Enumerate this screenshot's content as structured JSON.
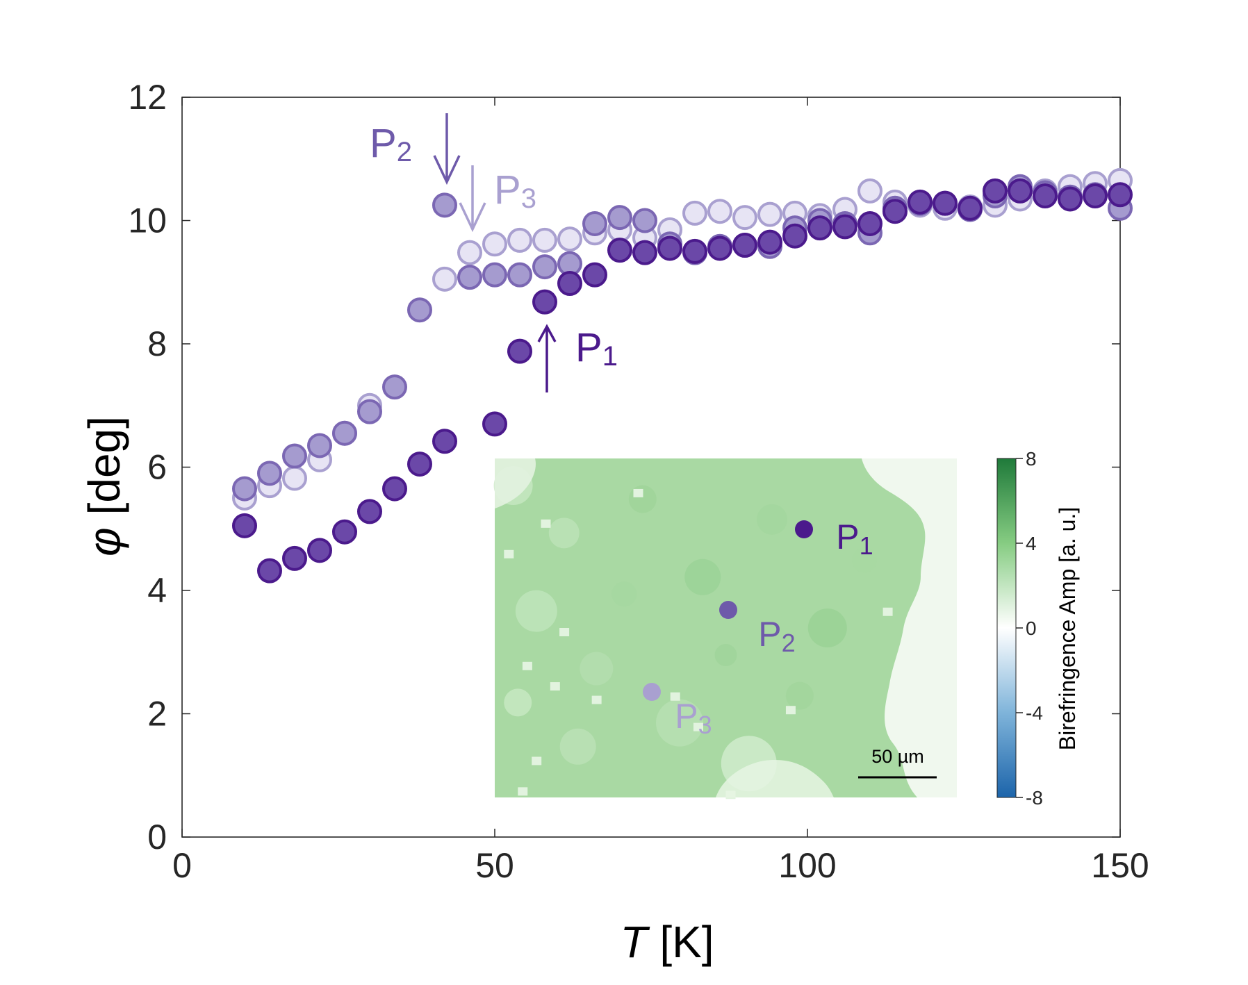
{
  "chart_data": {
    "type": "scatter",
    "xlabel": "T [K]",
    "ylabel": "φ [deg]",
    "xlim": [
      0,
      150
    ],
    "ylim": [
      0,
      12
    ],
    "xticks": [
      "0",
      "50",
      "100",
      "150"
    ],
    "yticks": [
      "0",
      "2",
      "4",
      "6",
      "8",
      "10",
      "12"
    ],
    "series": [
      {
        "name": "P1",
        "color": "#4b1a8c",
        "x": [
          10,
          14,
          18,
          22,
          26,
          30,
          34,
          38,
          42,
          50,
          54,
          58,
          62,
          66,
          70,
          74,
          78,
          82,
          86,
          90,
          94,
          98,
          102,
          106,
          110,
          114,
          118,
          122,
          126,
          130,
          134,
          138,
          142,
          146,
          150
        ],
        "y": [
          5.05,
          4.32,
          4.52,
          4.65,
          4.95,
          5.28,
          5.65,
          6.05,
          6.42,
          6.7,
          7.88,
          8.68,
          8.98,
          9.12,
          9.52,
          9.48,
          9.55,
          9.5,
          9.55,
          9.6,
          9.65,
          9.75,
          9.88,
          9.9,
          9.95,
          10.15,
          10.3,
          10.28,
          10.2,
          10.48,
          10.48,
          10.4,
          10.35,
          10.4,
          10.42
        ]
      },
      {
        "name": "P2",
        "color": "#7b67b3",
        "x": [
          10,
          14,
          18,
          22,
          26,
          30,
          34,
          38,
          42,
          46,
          50,
          54,
          58,
          62,
          66,
          70,
          74,
          78,
          82,
          86,
          90,
          94,
          98,
          102,
          106,
          110,
          114,
          118,
          122,
          126,
          130,
          134,
          138,
          142,
          146,
          150
        ],
        "y": [
          5.65,
          5.9,
          6.18,
          6.35,
          6.55,
          6.9,
          7.3,
          8.55,
          10.25,
          9.08,
          9.12,
          9.12,
          9.25,
          9.3,
          9.95,
          10.05,
          10.0,
          9.62,
          9.48,
          9.58,
          9.6,
          9.58,
          9.88,
          10.0,
          9.95,
          9.8,
          10.2,
          10.28,
          10.28,
          10.18,
          10.4,
          10.55,
          10.45,
          10.38,
          10.42,
          10.2
        ]
      },
      {
        "name": "P3",
        "color": "#a9a0d0",
        "x": [
          10,
          14,
          18,
          22,
          26,
          30,
          42,
          46,
          50,
          54,
          58,
          62,
          66,
          70,
          74,
          78,
          82,
          86,
          90,
          94,
          98,
          102,
          106,
          110,
          114,
          118,
          122,
          126,
          130,
          134,
          138,
          142,
          146,
          150
        ],
        "y": [
          5.5,
          5.7,
          5.82,
          6.12,
          6.55,
          7.0,
          9.05,
          9.48,
          9.62,
          9.68,
          9.68,
          9.7,
          9.8,
          9.85,
          9.72,
          9.85,
          10.12,
          10.15,
          10.05,
          10.1,
          10.12,
          10.08,
          10.18,
          10.48,
          10.3,
          10.25,
          10.2,
          10.22,
          10.25,
          10.35,
          10.48,
          10.55,
          10.6,
          10.65
        ]
      }
    ],
    "annotations": [
      {
        "main": "P",
        "sub": "1",
        "color": "#4b1a8c",
        "arrow": "up"
      },
      {
        "main": "P",
        "sub": "2",
        "color": "#6e5aaa",
        "arrow": "down"
      },
      {
        "main": "P",
        "sub": "3",
        "color": "#a9a0d0",
        "arrow": "down"
      }
    ],
    "inset": {
      "type": "heatmap",
      "points": [
        {
          "main": "P",
          "sub": "1",
          "color": "#4b1a8c"
        },
        {
          "main": "P",
          "sub": "2",
          "color": "#6e5aaa"
        },
        {
          "main": "P",
          "sub": "3",
          "color": "#a9a0d0"
        }
      ],
      "scale_bar_label": "50 µm",
      "colorbar": {
        "title": "Birefringence Amp [a. u.]",
        "range": [
          -8,
          8
        ],
        "ticks": [
          "8",
          "4",
          "0",
          "-4",
          "-8"
        ],
        "low_color": "#1c64aa",
        "mid_color": "#ffffff",
        "high_color": "#1f7a3a"
      }
    }
  }
}
